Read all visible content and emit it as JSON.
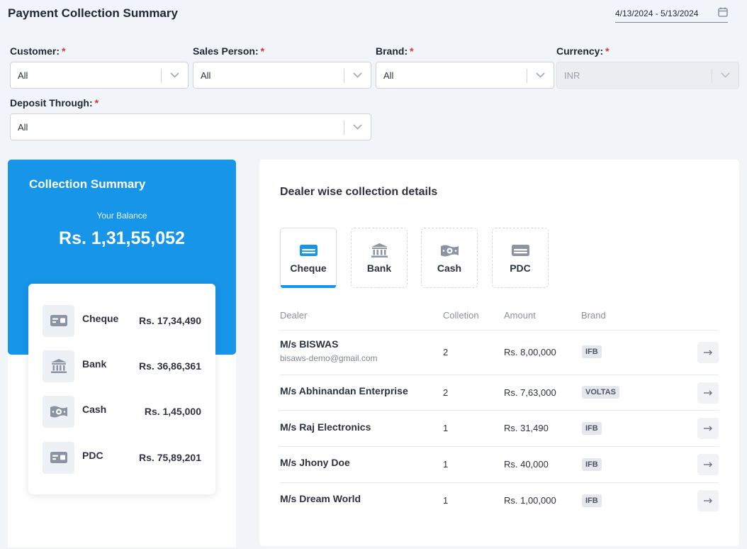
{
  "page": {
    "title": "Payment Collection Summary",
    "date_range": "4/13/2024 - 5/13/2024"
  },
  "filters": {
    "customer": {
      "label": "Customer:",
      "value": "All"
    },
    "sales_person": {
      "label": "Sales Person:",
      "value": "All"
    },
    "brand": {
      "label": "Brand:",
      "value": "All"
    },
    "currency": {
      "label": "Currency:",
      "value": "INR"
    },
    "deposit_through": {
      "label": "Deposit Through:",
      "value": "All"
    },
    "required_mark": "*"
  },
  "summary": {
    "title": "Collection Summary",
    "balance_label": "Your Balance",
    "balance_value": "Rs. 1,31,55,052",
    "methods": [
      {
        "name": "Cheque",
        "amount": "Rs. 17,34,490",
        "icon": "cheque-icon"
      },
      {
        "name": "Bank",
        "amount": "Rs. 36,86,361",
        "icon": "bank-icon"
      },
      {
        "name": "Cash",
        "amount": "Rs. 1,45,000",
        "icon": "cash-icon"
      },
      {
        "name": "PDC",
        "amount": "Rs. 75,89,201",
        "icon": "pdc-icon"
      }
    ]
  },
  "details": {
    "title": "Dealer wise collection details",
    "tabs": [
      {
        "label": "Cheque",
        "active": true
      },
      {
        "label": "Bank",
        "active": false
      },
      {
        "label": "Cash",
        "active": false
      },
      {
        "label": "PDC",
        "active": false
      }
    ],
    "columns": {
      "dealer": "Dealer",
      "collection": "Colletion",
      "amount": "Amount",
      "brand": "Brand"
    },
    "rows": [
      {
        "dealer": "M/s BISWAS",
        "email": "bisaws-demo@gmail.com",
        "collection": "2",
        "amount": "Rs. 8,00,000",
        "brand": "IFB"
      },
      {
        "dealer": "M/s Abhinandan Enterprise",
        "email": "",
        "collection": "2",
        "amount": "Rs. 7,63,000",
        "brand": "VOLTAS"
      },
      {
        "dealer": "M/s Raj Electronics",
        "email": "",
        "collection": "1",
        "amount": "Rs. 31,490",
        "brand": "IFB"
      },
      {
        "dealer": "M/s Jhony Doe",
        "email": "",
        "collection": "1",
        "amount": "Rs. 40,000",
        "brand": "IFB"
      },
      {
        "dealer": "M/s Dream World",
        "email": "",
        "collection": "1",
        "amount": "Rs. 1,00,000",
        "brand": "IFB"
      }
    ]
  },
  "colors": {
    "accent": "#1795e8",
    "required": "#e03131",
    "icon_gray": "#8b94a3"
  }
}
